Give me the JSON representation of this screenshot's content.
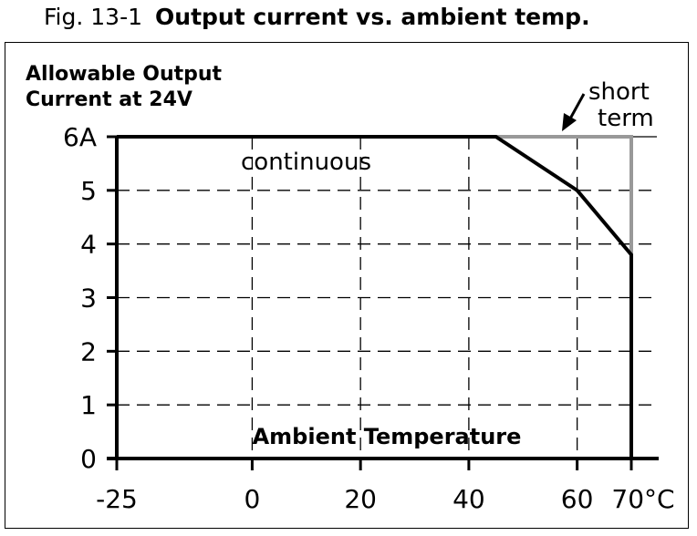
{
  "caption": {
    "number": "Fig. 13-1",
    "title": "Output current vs. ambient temp."
  },
  "chart_data": {
    "type": "line",
    "ylabel": [
      "Allowable Output",
      "Current at 24V"
    ],
    "xlabel": "Ambient Temperature",
    "xlim": [
      -25,
      70
    ],
    "ylim": [
      0,
      6
    ],
    "x_ticks": [
      -25,
      0,
      20,
      40,
      60,
      70
    ],
    "x_tick_labels": [
      "-25",
      "0",
      "20",
      "40",
      "60",
      "70°C"
    ],
    "y_ticks": [
      0,
      1,
      2,
      3,
      4,
      5,
      6
    ],
    "y_tick_labels": [
      "0",
      "1",
      "2",
      "3",
      "4",
      "5",
      "6A"
    ],
    "grid": true,
    "series": [
      {
        "name": "continuous",
        "color": "#000000",
        "points": [
          [
            -25,
            6
          ],
          [
            45,
            6
          ],
          [
            60,
            5
          ],
          [
            70,
            3.8
          ],
          [
            70,
            0
          ]
        ]
      },
      {
        "name": "short term",
        "color": "#999999",
        "points": [
          [
            45,
            6
          ],
          [
            70,
            6
          ],
          [
            70,
            3.8
          ]
        ]
      }
    ],
    "annotations": [
      "continuous",
      "short",
      "term"
    ]
  }
}
